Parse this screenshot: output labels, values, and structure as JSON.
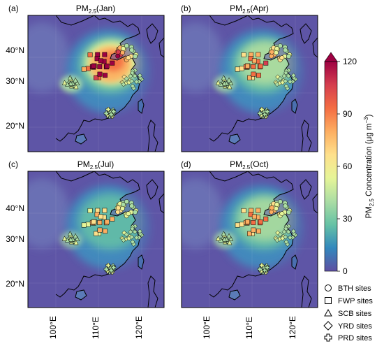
{
  "panels": [
    {
      "letter": "(a)",
      "title_main": "PM",
      "title_sub": "2.5",
      "title_rest": "(Jan)",
      "intensity": 1.0
    },
    {
      "letter": "(b)",
      "title_main": "PM",
      "title_sub": "2.5",
      "title_rest": "(Apr)",
      "intensity": 0.55
    },
    {
      "letter": "(c)",
      "title_main": "PM",
      "title_sub": "2.5",
      "title_rest": "(Jul)",
      "intensity": 0.35
    },
    {
      "letter": "(d)",
      "title_main": "PM",
      "title_sub": "2.5",
      "title_rest": "(Oct)",
      "intensity": 0.5
    }
  ],
  "axes": {
    "lat_ticks": [
      "40°N",
      "30°N",
      "20°N"
    ],
    "lon_ticks": [
      "100°E",
      "110°E",
      "120°E"
    ]
  },
  "colorbar": {
    "ticks": [
      "0",
      "30",
      "60",
      "90",
      "120"
    ],
    "min": 0,
    "max": 120,
    "label_pre": "PM",
    "label_sub": "2.5",
    "label_post": " Concentration (μg m",
    "label_sup": "−3",
    "label_end": ")",
    "colors": [
      "#5e4fa2",
      "#3288bd",
      "#66c2a5",
      "#abdda4",
      "#e6f598",
      "#fee08b",
      "#fdae61",
      "#f46d43",
      "#d53e4f",
      "#9e0142"
    ]
  },
  "legend": [
    {
      "symbol": "circle",
      "label": "BTH sites"
    },
    {
      "symbol": "square",
      "label": "FWP sites"
    },
    {
      "symbol": "triangle",
      "label": "SCB sites"
    },
    {
      "symbol": "diamond",
      "label": "YRD sites"
    },
    {
      "symbol": "plus",
      "label": "PRD sites"
    }
  ]
}
